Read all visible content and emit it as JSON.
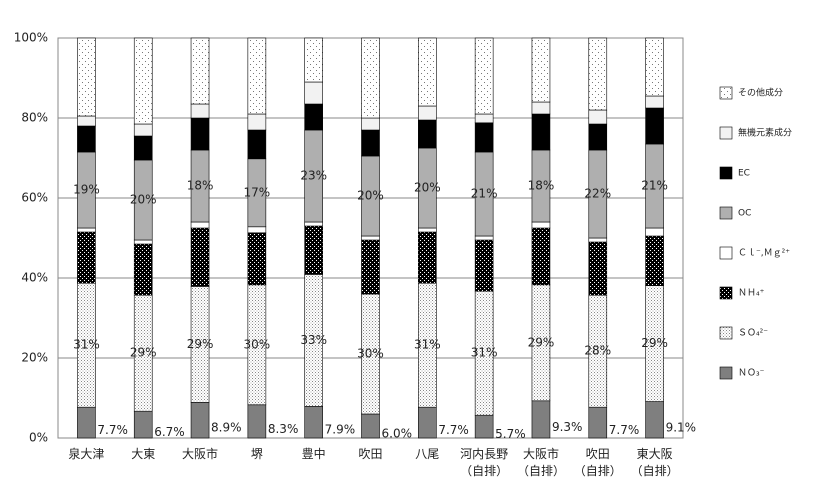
{
  "chart_data": {
    "type": "stacked-bar",
    "categories": [
      "泉大津",
      "大東",
      "大阪市",
      "堺",
      "豊中",
      "吹田",
      "八尾",
      "河内長野\n（自排）",
      "大阪市\n（自排）",
      "吹田\n（自排）",
      "東大阪\n（自排）"
    ],
    "ylim": [
      0,
      100
    ],
    "yticks": [
      {
        "value": 0,
        "label": "0%"
      },
      {
        "value": 20,
        "label": "20%"
      },
      {
        "value": 40,
        "label": "40%"
      },
      {
        "value": 60,
        "label": "60%"
      },
      {
        "value": 80,
        "label": "80%"
      },
      {
        "value": 100,
        "label": "100%"
      }
    ],
    "grid": true,
    "legend": "right",
    "series": [
      {
        "name": "ＮＯ₃⁻",
        "color": "#7f7f7f",
        "pattern": "solid",
        "values": [
          7.7,
          6.7,
          8.9,
          8.3,
          7.9,
          6.0,
          7.7,
          5.7,
          9.3,
          7.7,
          9.1
        ],
        "value_labels": [
          "7.7%",
          "6.7%",
          "8.9%",
          "8.3%",
          "7.9%",
          "6.0%",
          "7.7%",
          "5.7%",
          "9.3%",
          "7.7%",
          "9.1%"
        ],
        "label_position": "right"
      },
      {
        "name": "ＳＯ₄²⁻",
        "color": "#d9d9d9",
        "pattern": "dense-dots",
        "values": [
          31,
          29,
          29,
          30,
          33,
          30,
          31,
          31,
          29,
          28,
          29
        ],
        "value_labels": [
          "31%",
          "29%",
          "29%",
          "30%",
          "33%",
          "30%",
          "31%",
          "31%",
          "29%",
          "28%",
          "29%"
        ],
        "label_position": "center"
      },
      {
        "name": "ＮＨ₄⁺",
        "color": "#262626",
        "pattern": "checker",
        "values": [
          12.8,
          12.8,
          14.6,
          13,
          12.1,
          13.5,
          12.8,
          12.8,
          14.2,
          13.3,
          12.4
        ]
      },
      {
        "name": "Ｃｌ⁻,Ｍｇ²⁺",
        "color": "#ffffff",
        "pattern": "solid",
        "values": [
          1,
          1,
          1.5,
          1.5,
          1,
          1,
          1,
          1,
          1.5,
          1,
          2
        ]
      },
      {
        "name": "OC",
        "color": "#afafaf",
        "pattern": "solid",
        "values": [
          19,
          20,
          18,
          17,
          23,
          20,
          20,
          21,
          18,
          22,
          21
        ],
        "value_labels": [
          "19%",
          "20%",
          "18%",
          "17%",
          "23%",
          "20%",
          "20%",
          "21%",
          "18%",
          "22%",
          "21%"
        ],
        "label_position": "center"
      },
      {
        "name": "EC",
        "color": "#000000",
        "pattern": "solid",
        "values": [
          6.5,
          6,
          8,
          7.2,
          6.5,
          6.5,
          7,
          7.3,
          9,
          6.5,
          9
        ]
      },
      {
        "name": "無機元素成分",
        "color": "#f2f2f2",
        "pattern": "solid",
        "values": [
          2.5,
          3,
          3.5,
          4,
          5.5,
          3,
          3.5,
          2.2,
          3,
          3.5,
          3
        ]
      },
      {
        "name": "その他成分",
        "color": "#ffffff",
        "pattern": "sparse-dots",
        "values": [
          19.5,
          21.5,
          16.5,
          19,
          11,
          20,
          17,
          19,
          16,
          18,
          14.5
        ]
      }
    ]
  }
}
